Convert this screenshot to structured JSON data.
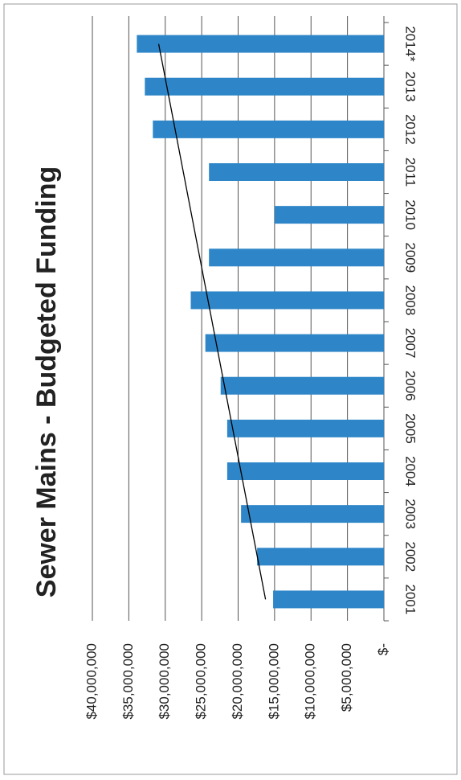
{
  "chart_data": {
    "type": "bar",
    "orientation": "rotated",
    "title": "Sewer Mains - Budgeted Funding",
    "categories": [
      "2001",
      "2002",
      "2003",
      "2004",
      "2005",
      "2006",
      "2007",
      "2008",
      "2009",
      "2010",
      "2011",
      "2012",
      "2013",
      "2014*"
    ],
    "values": [
      15200000,
      17400000,
      19600000,
      21500000,
      21500000,
      22400000,
      24500000,
      26500000,
      24000000,
      15000000,
      24000000,
      31700000,
      32800000,
      33900000
    ],
    "color": "#2e86c8",
    "ylim": [
      0,
      40000000
    ],
    "yticks": [
      {
        "value": 0,
        "label": "$-"
      },
      {
        "value": 5000000,
        "label": "$5,000,000"
      },
      {
        "value": 10000000,
        "label": "$10,000,000"
      },
      {
        "value": 15000000,
        "label": "$15,000,000"
      },
      {
        "value": 20000000,
        "label": "$20,000,000"
      },
      {
        "value": 25000000,
        "label": "$25,000,000"
      },
      {
        "value": 30000000,
        "label": "$30,000,000"
      },
      {
        "value": 35000000,
        "label": "$35,000,000"
      },
      {
        "value": 40000000,
        "label": "$40,000,000"
      }
    ],
    "grid": true,
    "trendline": true
  }
}
